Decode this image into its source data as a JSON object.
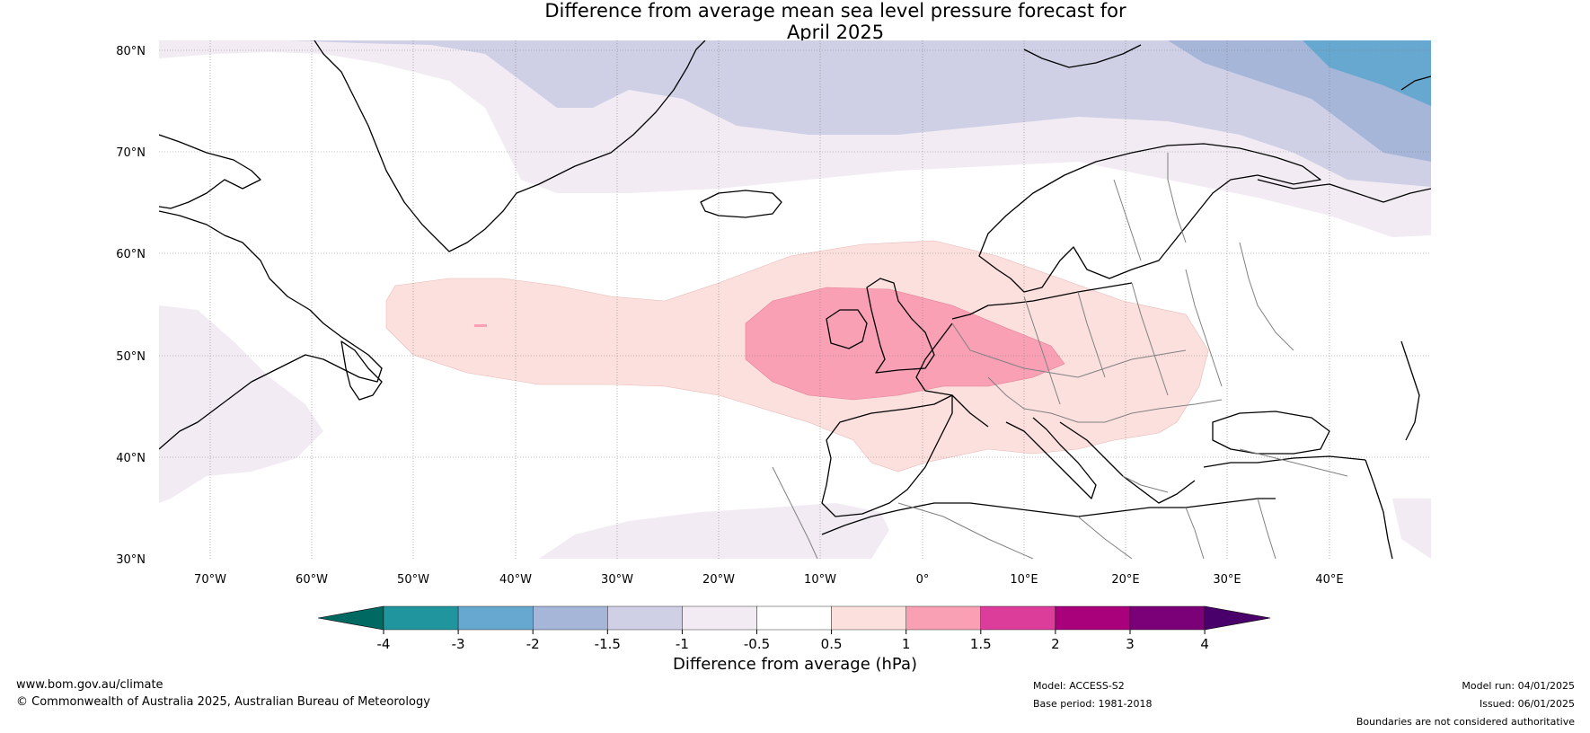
{
  "title": {
    "line1": "Difference from average mean sea level pressure forecast for",
    "line2": "April 2025"
  },
  "map": {
    "latitude_labels": [
      "80°N",
      "70°N",
      "60°N",
      "50°N",
      "40°N",
      "30°N"
    ],
    "longitude_labels": [
      "70°W",
      "60°W",
      "50°W",
      "40°W",
      "30°W",
      "20°W",
      "10°W",
      "0°",
      "10°E",
      "20°E",
      "30°E",
      "40°E"
    ],
    "colors": {
      "coast": "#000000",
      "borders": "#808080",
      "graticule": "#808080"
    }
  },
  "colorbar": {
    "label": "Difference from average (hPa)",
    "ticks": [
      "-4",
      "-3",
      "-2",
      "-1.5",
      "-1",
      "-0.5",
      "0.5",
      "1",
      "1.5",
      "2",
      "3",
      "4"
    ],
    "colors": [
      "#006a62",
      "#20959e",
      "#66a8d0",
      "#a5b6d9",
      "#cfd0e5",
      "#f2ebf4",
      "#ffffff",
      "#fce0de",
      "#f9a0b5",
      "#dc3c9a",
      "#a9007c",
      "#7a0177",
      "#4a006a"
    ]
  },
  "footer": {
    "website": "www.bom.gov.au/climate",
    "copyright": "© Commonwealth of Australia 2025, Australian Bureau of Meteorology",
    "model": "Model: ACCESS-S2",
    "base_period": "Base period: 1981-2018",
    "model_run": "Model run: 04/01/2025",
    "issued": "Issued: 06/01/2025",
    "disclaimer": "Boundaries are not considered authoritative"
  }
}
